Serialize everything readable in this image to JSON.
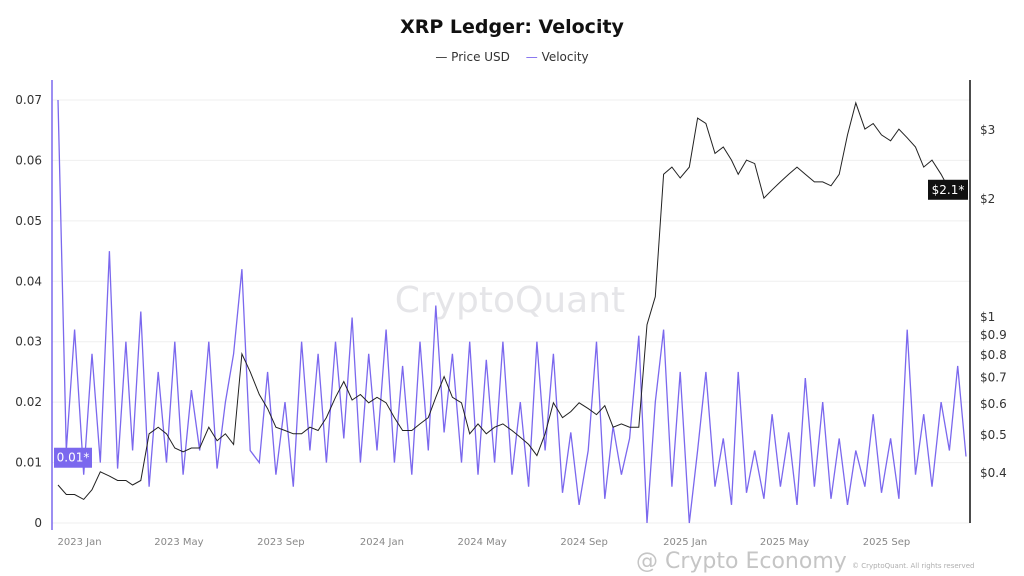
{
  "title": "XRP Ledger: Velocity",
  "legend": [
    {
      "label": "Price USD",
      "color": "#333333"
    },
    {
      "label": "Velocity",
      "color": "#7b68ee"
    }
  ],
  "watermark": "CryptoQuant",
  "overlay_watermark": "@ Crypto Economy",
  "copyright": "© CryptoQuant. All rights reserved",
  "chart_data": {
    "type": "line",
    "title": "XRP Ledger: Velocity",
    "grid": true,
    "legend_position": "top-center",
    "left_axis": {
      "series": "Velocity",
      "range": [
        0,
        0.07
      ],
      "ticks": [
        "0",
        "0.01",
        "0.02",
        "0.03",
        "0.04",
        "0.05",
        "0.06",
        "0.07"
      ],
      "current_label": "0.01*",
      "current_value": 0.0108,
      "color": "#7b68ee"
    },
    "right_axis": {
      "series": "Price USD",
      "scale": "log",
      "range": [
        0.296,
        3.56
      ],
      "ticks": [
        {
          "v": 3,
          "l": "$3"
        },
        {
          "v": 2,
          "l": "$2"
        },
        {
          "v": 1,
          "l": "$1"
        },
        {
          "v": 0.9,
          "l": "$0.9"
        },
        {
          "v": 0.8,
          "l": "$0.8"
        },
        {
          "v": 0.7,
          "l": "$0.7"
        },
        {
          "v": 0.6,
          "l": "$0.6"
        },
        {
          "v": 0.5,
          "l": "$0.5"
        },
        {
          "v": 0.4,
          "l": "$0.4"
        }
      ],
      "current_label": "$2.1*",
      "current_value": 2.1,
      "color": "#111111"
    },
    "x_axis": {
      "range": [
        "2022-12-06",
        "2025-12-06"
      ],
      "ticks": [
        {
          "d": "2023-01-01",
          "l": "2023 Jan"
        },
        {
          "d": "2023-05-01",
          "l": "2023 May"
        },
        {
          "d": "2023-09-01",
          "l": "2023 Sep"
        },
        {
          "d": "2024-01-01",
          "l": "2024 Jan"
        },
        {
          "d": "2024-05-01",
          "l": "2024 May"
        },
        {
          "d": "2024-09-01",
          "l": "2024 Sep"
        },
        {
          "d": "2025-01-01",
          "l": "2025 Jan"
        },
        {
          "d": "2025-05-01",
          "l": "2025 May"
        },
        {
          "d": "2025-09-01",
          "l": "2025 Sep"
        }
      ]
    },
    "months": [
      "2022-12",
      "2023-01",
      "2023-02",
      "2023-03",
      "2023-04",
      "2023-05",
      "2023-06",
      "2023-07",
      "2023-08",
      "2023-09",
      "2023-10",
      "2023-11",
      "2023-12",
      "2024-01",
      "2024-02",
      "2024-03",
      "2024-04",
      "2024-05",
      "2024-06",
      "2024-07",
      "2024-08",
      "2024-09",
      "2024-10",
      "2024-11",
      "2024-12",
      "2025-01",
      "2025-02",
      "2025-03",
      "2025-04",
      "2025-05",
      "2025-06",
      "2025-07",
      "2025-08",
      "2025-09",
      "2025-10",
      "2025-11",
      "2025-12"
    ],
    "days_of_month": [
      6,
      16,
      26
    ],
    "series": [
      {
        "name": "Velocity",
        "axis": "left",
        "color": "#7b68ee",
        "values": [
          0.07,
          0.012,
          0.032,
          0.008,
          0.028,
          0.01,
          0.045,
          0.009,
          0.03,
          0.012,
          0.035,
          0.006,
          0.025,
          0.01,
          0.03,
          0.008,
          0.022,
          0.012,
          0.03,
          0.009,
          0.02,
          0.028,
          0.042,
          0.012,
          0.01,
          0.025,
          0.008,
          0.02,
          0.006,
          0.03,
          0.012,
          0.028,
          0.01,
          0.03,
          0.014,
          0.034,
          0.01,
          0.028,
          0.012,
          0.032,
          0.01,
          0.026,
          0.008,
          0.03,
          0.012,
          0.036,
          0.015,
          0.028,
          0.01,
          0.03,
          0.008,
          0.027,
          0.01,
          0.03,
          0.008,
          0.02,
          0.006,
          0.03,
          0.012,
          0.028,
          0.005,
          0.015,
          0.003,
          0.012,
          0.03,
          0.004,
          0.016,
          0.008,
          0.014,
          0.031,
          0.0,
          0.02,
          0.032,
          0.006,
          0.025,
          0.0,
          0.012,
          0.025,
          0.006,
          0.014,
          0.003,
          0.025,
          0.005,
          0.012,
          0.004,
          0.018,
          0.006,
          0.015,
          0.003,
          0.024,
          0.006,
          0.02,
          0.004,
          0.014,
          0.003,
          0.012,
          0.006,
          0.018,
          0.005,
          0.014,
          0.004,
          0.032,
          0.008,
          0.018,
          0.006,
          0.02,
          0.012,
          0.026,
          0.011
        ]
      },
      {
        "name": "Price USD",
        "axis": "right",
        "color": "#222222",
        "values": [
          0.37,
          0.35,
          0.35,
          0.34,
          0.36,
          0.4,
          0.39,
          0.38,
          0.38,
          0.37,
          0.38,
          0.5,
          0.52,
          0.5,
          0.46,
          0.45,
          0.46,
          0.46,
          0.52,
          0.48,
          0.5,
          0.47,
          0.8,
          0.72,
          0.63,
          0.58,
          0.52,
          0.51,
          0.5,
          0.5,
          0.52,
          0.51,
          0.55,
          0.62,
          0.68,
          0.61,
          0.63,
          0.6,
          0.62,
          0.6,
          0.55,
          0.51,
          0.51,
          0.53,
          0.55,
          0.62,
          0.7,
          0.62,
          0.6,
          0.5,
          0.53,
          0.5,
          0.52,
          0.53,
          0.51,
          0.49,
          0.47,
          0.44,
          0.5,
          0.6,
          0.55,
          0.57,
          0.6,
          0.58,
          0.56,
          0.59,
          0.52,
          0.53,
          0.52,
          0.52,
          0.95,
          1.12,
          2.3,
          2.4,
          2.25,
          2.4,
          3.2,
          3.1,
          2.6,
          2.7,
          2.5,
          2.3,
          2.5,
          2.45,
          2.0,
          2.1,
          2.2,
          2.3,
          2.4,
          2.3,
          2.2,
          2.2,
          2.15,
          2.3,
          2.9,
          3.5,
          3.0,
          3.1,
          2.9,
          2.8,
          3.0,
          2.85,
          2.7,
          2.4,
          2.5,
          2.3,
          2.1,
          2.2,
          2.1
        ]
      }
    ]
  }
}
